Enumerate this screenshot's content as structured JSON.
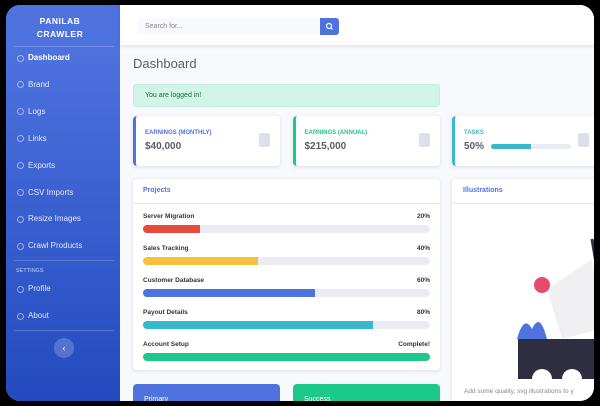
{
  "sidebar": {
    "brand": [
      "PANILAB",
      "CRAWLER"
    ],
    "nav": [
      "Dashboard",
      "Brand",
      "Logs",
      "Links",
      "Exports",
      "CSV Imports",
      "Resize Images",
      "Crawl Products"
    ],
    "settings_heading": "SETTINGS",
    "settings": [
      "Profile",
      "About"
    ]
  },
  "topbar": {
    "search_placeholder": "Search for..."
  },
  "page_title": "Dashboard",
  "alert": "You are logged in!",
  "cards": [
    {
      "label": "EARNINGS (MONTHLY)",
      "value": "$40,000",
      "color": "#4e73df"
    },
    {
      "label": "EARNINGS (ANNUAL)",
      "value": "$215,000",
      "color": "#1cc88a"
    },
    {
      "label": "TASKS",
      "value": 50,
      "value_label": "50%",
      "color": "#36b9cc"
    }
  ],
  "projects": {
    "title": "Projects",
    "items": [
      {
        "name": "Server Migration",
        "value": 20,
        "label": "20%",
        "color": "#e74a3b"
      },
      {
        "name": "Sales Tracking",
        "value": 40,
        "label": "40%",
        "color": "#f6c23e"
      },
      {
        "name": "Customer Database",
        "value": 60,
        "label": "60%",
        "color": "#4e73df"
      },
      {
        "name": "Payout Details",
        "value": 80,
        "label": "80%",
        "color": "#36b9cc"
      },
      {
        "name": "Account Setup",
        "value": 100,
        "label": "Complete!",
        "color": "#1cc88a"
      }
    ]
  },
  "illustrations": {
    "title": "Illustrations",
    "text": "Add some quality, svg illustrations to y"
  },
  "bottom_cards": [
    "Primary",
    "Success"
  ]
}
